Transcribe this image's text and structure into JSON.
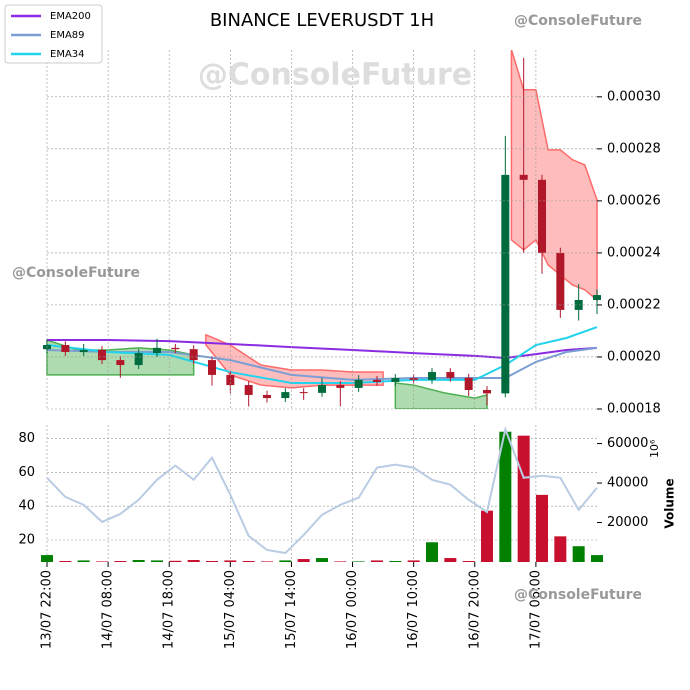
{
  "chart_data": [
    {
      "type": "candlestick",
      "title": "BINANCE LEVERUSDT 1H",
      "x": [
        0,
        3,
        6,
        9,
        12,
        15,
        18,
        21,
        24,
        27,
        30,
        33,
        36,
        39,
        42,
        45,
        48,
        51,
        54,
        57,
        60,
        63,
        66,
        69,
        72,
        75,
        78,
        81,
        84,
        87,
        90
      ],
      "open": [
        0.000203,
        0.0002046,
        0.0002019,
        0.0002027,
        0.0001988,
        0.0001969,
        0.0002015,
        0.0002035,
        0.000203,
        0.0001988,
        0.0001931,
        0.0001892,
        0.0001854,
        0.0001842,
        0.0001865,
        0.0001862,
        0.0001892,
        0.0001881,
        0.0001912,
        0.0001904,
        0.0001919,
        0.0001912,
        0.0001942,
        0.000192,
        0.0001873,
        0.000186,
        0.00027,
        0.0002681,
        0.00024,
        0.0002181,
        0.0002219
      ],
      "high": [
        0.0002065,
        0.000206,
        0.000205,
        0.0002042,
        0.0002003,
        0.000203,
        0.000207,
        0.000205,
        0.0002045,
        0.0002003,
        0.0001946,
        0.0001907,
        0.000187,
        0.000188,
        0.000188,
        0.000192,
        0.0001907,
        0.000193,
        0.0001927,
        0.0001934,
        0.0001934,
        0.0001957,
        0.0001957,
        0.0001935,
        0.0001888,
        0.000285,
        0.000315,
        0.00027,
        0.000242,
        0.000228,
        0.000226
      ],
      "low": [
        0.0002015,
        0.0002004,
        0.0002004,
        0.0001973,
        0.000192,
        0.0001954,
        0.0002,
        0.0002015,
        0.0001973,
        0.000189,
        0.000186,
        0.000181,
        0.0001825,
        0.0001827,
        0.0001835,
        0.0001847,
        0.000181,
        0.0001866,
        0.0001889,
        0.0001889,
        0.0001897,
        0.0001897,
        0.0001905,
        0.000185,
        0.0001815,
        0.0001845,
        0.00024,
        0.000232,
        0.000215,
        0.000214,
        0.0002165
      ],
      "close": [
        0.0002046,
        0.0002019,
        0.0002027,
        0.0001988,
        0.0001969,
        0.0002015,
        0.0002035,
        0.000203,
        0.0001988,
        0.0001931,
        0.0001892,
        0.0001854,
        0.0001842,
        0.0001865,
        0.0001862,
        0.0001892,
        0.0001881,
        0.0001912,
        0.0001904,
        0.0001919,
        0.0001912,
        0.0001942,
        0.000192,
        0.0001873,
        0.000186,
        0.00027,
        0.0002681,
        0.00024,
        0.0002181,
        0.0002219,
        0.0002238
      ],
      "up_color": "#006b3c",
      "down_color": "#b0182a",
      "xlim": [
        0,
        90
      ],
      "ylim": [
        0.00018,
        0.000318
      ],
      "yticks": [
        {
          "value": 0.00018,
          "label": "0.00018"
        },
        {
          "value": 0.0002,
          "label": "0.00020"
        },
        {
          "value": 0.00022,
          "label": "0.00022"
        },
        {
          "value": 0.00024,
          "label": "0.00024"
        },
        {
          "value": 0.00026,
          "label": "0.00026"
        },
        {
          "value": 0.00028,
          "label": "0.00028"
        },
        {
          "value": 0.0003,
          "label": "0.00030"
        }
      ],
      "grid": true,
      "series": [
        {
          "name": "EMA200",
          "color": "#8a2be2",
          "x": [
            0,
            10,
            20,
            30,
            40,
            50,
            60,
            70,
            75,
            80,
            85,
            90
          ],
          "values": [
            0.0002065,
            0.0002065,
            0.0002061,
            0.000205,
            0.0002038,
            0.0002027,
            0.0002015,
            0.0002004,
            0.0001996,
            0.0002011,
            0.0002027,
            0.0002035
          ]
        },
        {
          "name": "EMA89",
          "color": "#7b9fd4",
          "x": [
            0,
            10,
            20,
            30,
            40,
            50,
            60,
            70,
            75,
            80,
            85,
            90
          ],
          "values": [
            0.0002027,
            0.0002019,
            0.0002019,
            0.0001988,
            0.0001931,
            0.0001912,
            0.0001919,
            0.0001919,
            0.0001919,
            0.0001981,
            0.0002019,
            0.0002035
          ]
        },
        {
          "name": "EMA34",
          "color": "#22d3ee",
          "x": [
            0,
            10,
            20,
            30,
            40,
            50,
            60,
            70,
            75,
            80,
            85,
            90
          ],
          "values": [
            0.0002046,
            0.0002019,
            0.0002008,
            0.0001942,
            0.00019,
            0.00019,
            0.0001912,
            0.0001912,
            0.0001969,
            0.0002046,
            0.0002073,
            0.0002115
          ]
        }
      ],
      "clouds": [
        {
          "color": "#4caf50",
          "x": [
            0,
            5,
            10,
            15,
            20,
            24
          ],
          "upper": [
            0.0002065,
            0.0002027,
            0.0002027,
            0.0002035,
            0.0002027,
            0.0002008
          ],
          "lower": [
            0.0001931,
            0.0001931,
            0.0001931,
            0.0001931,
            0.0001931,
            0.0001931
          ]
        },
        {
          "color": "#ff6b6b",
          "x": [
            26,
            30,
            35,
            40,
            45,
            50,
            55
          ],
          "upper": [
            0.0002085,
            0.0002046,
            0.0001969,
            0.000195,
            0.000195,
            0.0001942,
            0.0001942
          ],
          "lower": [
            0.0002046,
            0.0001931,
            0.0001892,
            0.0001881,
            0.0001892,
            0.0001892,
            0.0001892
          ]
        },
        {
          "color": "#4caf50",
          "x": [
            57,
            60,
            65,
            70,
            72
          ],
          "upper": [
            0.00019,
            0.0001892,
            0.0001862,
            0.0001842,
            0.0001854
          ],
          "lower": [
            0.00018,
            0.00018,
            0.00018,
            0.00018,
            0.00018
          ]
        },
        {
          "color": "#ff6b6b",
          "x": [
            76,
            78,
            80,
            82,
            84,
            86,
            88,
            90
          ],
          "upper": [
            0.0003181,
            0.0003027,
            0.0003027,
            0.0002796,
            0.0002796,
            0.0002758,
            0.0002738,
            0.0002604
          ],
          "lower": [
            0.000245,
            0.0002412,
            0.000245,
            0.0002354,
            0.0002315,
            0.0002277,
            0.0002258,
            0.0002219
          ]
        }
      ],
      "watermarks": [
        "@ConsoleFuture",
        "@ConsoleFuture",
        "@ConsoleFuture",
        "@ConsoleFuture"
      ]
    },
    {
      "type": "bar",
      "x": [
        0,
        3,
        6,
        9,
        12,
        15,
        18,
        21,
        24,
        27,
        30,
        33,
        36,
        39,
        42,
        45,
        48,
        51,
        54,
        57,
        60,
        63,
        66,
        69,
        72,
        75,
        78,
        81,
        84,
        87,
        90
      ],
      "values": [
        3500,
        500,
        800,
        300,
        500,
        1000,
        800,
        600,
        1000,
        500,
        800,
        500,
        300,
        800,
        1500,
        2000,
        300,
        300,
        800,
        500,
        800,
        10000,
        2000,
        500,
        26000,
        66000,
        64000,
        34000,
        13000,
        8000,
        3500
      ],
      "axis": "y2",
      "line": {
        "color": "#b9cce4",
        "values": [
          56.8,
          45.5,
          40.8,
          30.7,
          35.4,
          43.8,
          55.6,
          64,
          55.6,
          68.7,
          46.7,
          22.4,
          14.1,
          12.3,
          23,
          34.9,
          40.8,
          45,
          62.8,
          64.6,
          62.8,
          55.6,
          52.7,
          43.8,
          36.6,
          85.4,
          56.8,
          58,
          56.8,
          37.8,
          50.9
        ]
      },
      "xlim": [
        0,
        90
      ],
      "ylim": [
        7,
        88
      ],
      "yticks": [
        20,
        40,
        60,
        80
      ],
      "y2lim": [
        0,
        69400
      ],
      "y2ticks": [
        20000,
        40000,
        60000
      ],
      "y2label": "Volume",
      "y2offset": "10⁶",
      "xticks": [
        {
          "value": 0,
          "label": "13/07 22:00"
        },
        {
          "value": 10,
          "label": "14/07 08:00"
        },
        {
          "value": 20,
          "label": "14/07 18:00"
        },
        {
          "value": 30,
          "label": "15/07 04:00"
        },
        {
          "value": 40,
          "label": "15/07 14:00"
        },
        {
          "value": 50,
          "label": "16/07 00:00"
        },
        {
          "value": 60,
          "label": "16/07 10:00"
        },
        {
          "value": 70,
          "label": "16/07 20:00"
        },
        {
          "value": 80,
          "label": "17/07 06:00"
        }
      ]
    }
  ]
}
